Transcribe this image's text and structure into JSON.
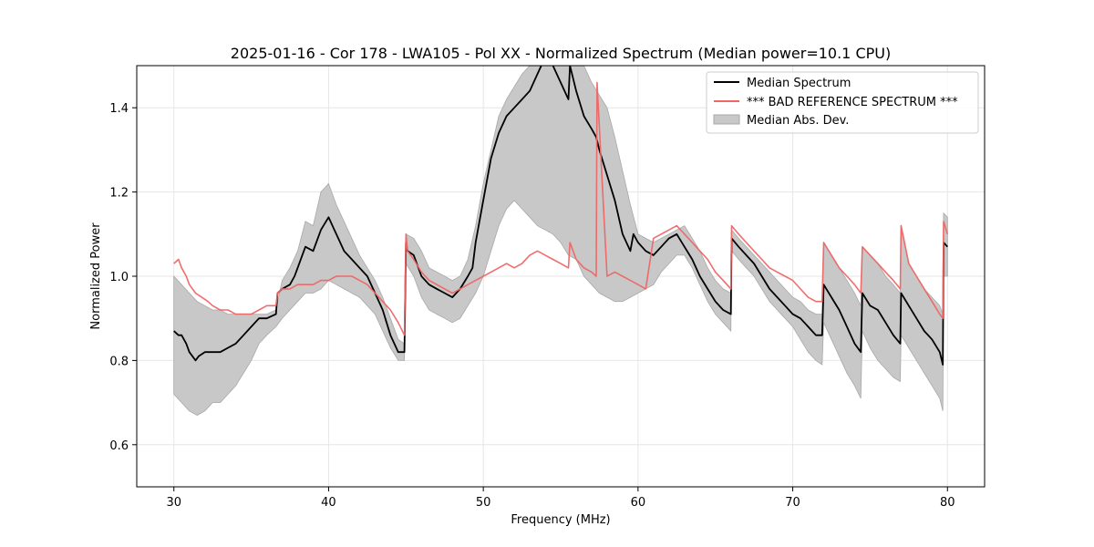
{
  "chart_data": {
    "type": "line",
    "title": "2025-01-16 - Cor 178 - LWA105 - Pol XX - Normalized Spectrum (Median power=10.1 CPU)",
    "xlabel": "Frequency (MHz)",
    "ylabel": "Normalized Power",
    "xlim": [
      27.6,
      82.4
    ],
    "ylim": [
      0.5,
      1.5
    ],
    "xticks": [
      30,
      40,
      50,
      60,
      70,
      80
    ],
    "yticks": [
      0.6,
      0.8,
      1.0,
      1.2,
      1.4
    ],
    "grid": true,
    "legend_position": "top-right",
    "series": [
      {
        "name": "Median Spectrum",
        "color": "#000000",
        "x": [
          30.0,
          30.3,
          30.5,
          30.8,
          31.0,
          31.4,
          31.6,
          32.0,
          32.5,
          33.0,
          33.5,
          34.0,
          34.5,
          35.0,
          35.5,
          36.0,
          36.6,
          36.7,
          37.0,
          37.5,
          37.8,
          38.0,
          38.3,
          38.5,
          39.0,
          39.5,
          40.0,
          40.5,
          41.0,
          41.5,
          42.0,
          42.5,
          43.0,
          43.5,
          44.0,
          44.5,
          44.9,
          45.0,
          45.1,
          45.5,
          46.0,
          46.5,
          47.0,
          47.5,
          48.0,
          48.5,
          49.0,
          49.3,
          49.5,
          50.0,
          50.5,
          51.0,
          51.5,
          52.0,
          52.5,
          53.0,
          53.5,
          54.0,
          54.5,
          55.0,
          55.5,
          55.6,
          56.0,
          56.5,
          57.0,
          57.3,
          57.5,
          58.0,
          58.5,
          59.0,
          59.5,
          59.7,
          60.0,
          60.5,
          61.0,
          61.5,
          62.0,
          62.5,
          63.0,
          63.5,
          64.0,
          64.5,
          65.0,
          65.5,
          66.0,
          66.05,
          66.5,
          67.0,
          67.5,
          68.0,
          68.5,
          69.0,
          69.5,
          70.0,
          70.5,
          71.0,
          71.5,
          71.9,
          72.0,
          72.5,
          73.0,
          73.5,
          74.0,
          74.4,
          74.5,
          75.0,
          75.5,
          76.0,
          76.5,
          76.95,
          77.0,
          77.5,
          78.0,
          78.5,
          79.0,
          79.5,
          79.7,
          79.75,
          80.0
        ],
        "values": [
          0.87,
          0.86,
          0.86,
          0.84,
          0.82,
          0.8,
          0.81,
          0.82,
          0.82,
          0.82,
          0.83,
          0.84,
          0.86,
          0.88,
          0.9,
          0.9,
          0.91,
          0.96,
          0.97,
          0.98,
          1.0,
          1.02,
          1.05,
          1.07,
          1.06,
          1.11,
          1.14,
          1.1,
          1.06,
          1.04,
          1.02,
          1.0,
          0.96,
          0.92,
          0.86,
          0.82,
          0.82,
          1.08,
          1.06,
          1.05,
          1.0,
          0.98,
          0.97,
          0.96,
          0.95,
          0.97,
          1.0,
          1.02,
          1.08,
          1.18,
          1.28,
          1.34,
          1.38,
          1.4,
          1.42,
          1.44,
          1.48,
          1.52,
          1.5,
          1.46,
          1.42,
          1.5,
          1.44,
          1.38,
          1.35,
          1.33,
          1.3,
          1.24,
          1.18,
          1.1,
          1.06,
          1.1,
          1.08,
          1.06,
          1.05,
          1.07,
          1.09,
          1.1,
          1.07,
          1.04,
          1.0,
          0.97,
          0.94,
          0.92,
          0.91,
          1.09,
          1.07,
          1.05,
          1.03,
          1.0,
          0.97,
          0.95,
          0.93,
          0.91,
          0.9,
          0.88,
          0.86,
          0.86,
          0.98,
          0.95,
          0.92,
          0.88,
          0.84,
          0.82,
          0.96,
          0.93,
          0.92,
          0.89,
          0.86,
          0.84,
          0.96,
          0.93,
          0.9,
          0.87,
          0.85,
          0.82,
          0.79,
          1.08,
          1.07
        ]
      },
      {
        "name": "*** BAD REFERENCE SPECTRUM ***",
        "color": "#ee6666",
        "x": [
          30.0,
          30.3,
          30.5,
          30.8,
          31.0,
          31.4,
          31.8,
          32.2,
          32.5,
          33.0,
          33.5,
          34.0,
          34.5,
          35.0,
          35.5,
          36.0,
          36.6,
          36.7,
          37.0,
          37.5,
          38.0,
          38.5,
          39.0,
          39.5,
          40.0,
          40.5,
          41.0,
          41.5,
          42.0,
          42.5,
          43.0,
          43.5,
          44.0,
          44.5,
          44.9,
          45.0,
          45.1,
          45.5,
          46.0,
          46.5,
          47.0,
          47.5,
          48.0,
          48.5,
          49.0,
          49.5,
          50.0,
          50.5,
          51.0,
          51.5,
          52.0,
          52.5,
          53.0,
          53.5,
          54.0,
          54.5,
          55.0,
          55.5,
          55.6,
          56.0,
          56.5,
          57.0,
          57.3,
          57.35,
          58.0,
          58.5,
          59.0,
          59.5,
          60.0,
          60.5,
          61.0,
          61.5,
          62.0,
          62.5,
          63.0,
          63.5,
          64.0,
          64.5,
          65.0,
          65.5,
          66.0,
          66.05,
          66.5,
          67.0,
          67.5,
          68.0,
          68.5,
          69.0,
          69.5,
          70.0,
          70.5,
          71.0,
          71.5,
          71.9,
          72.0,
          72.5,
          73.0,
          73.5,
          74.0,
          74.4,
          74.5,
          75.0,
          75.5,
          76.0,
          76.5,
          76.95,
          77.0,
          77.5,
          78.0,
          78.5,
          79.0,
          79.5,
          79.7,
          79.75,
          80.0
        ],
        "values": [
          1.03,
          1.04,
          1.02,
          1.0,
          0.98,
          0.96,
          0.95,
          0.94,
          0.93,
          0.92,
          0.92,
          0.91,
          0.91,
          0.91,
          0.92,
          0.93,
          0.93,
          0.96,
          0.97,
          0.97,
          0.98,
          0.98,
          0.98,
          0.99,
          0.99,
          1.0,
          1.0,
          1.0,
          0.99,
          0.98,
          0.96,
          0.94,
          0.92,
          0.89,
          0.86,
          1.1,
          1.06,
          1.04,
          1.01,
          0.99,
          0.98,
          0.97,
          0.96,
          0.97,
          0.98,
          0.99,
          1.0,
          1.01,
          1.02,
          1.03,
          1.02,
          1.03,
          1.05,
          1.06,
          1.05,
          1.04,
          1.03,
          1.02,
          1.08,
          1.04,
          1.02,
          1.01,
          1.0,
          1.46,
          1.0,
          1.01,
          1.0,
          0.99,
          0.98,
          0.97,
          1.09,
          1.1,
          1.11,
          1.12,
          1.1,
          1.08,
          1.06,
          1.04,
          1.01,
          0.99,
          0.97,
          1.12,
          1.1,
          1.08,
          1.06,
          1.04,
          1.02,
          1.01,
          1.0,
          0.99,
          0.97,
          0.95,
          0.94,
          0.94,
          1.08,
          1.05,
          1.02,
          1.0,
          0.98,
          0.96,
          1.07,
          1.05,
          1.03,
          1.01,
          0.99,
          0.97,
          1.12,
          1.03,
          1.0,
          0.97,
          0.94,
          0.91,
          0.9,
          1.13,
          1.1
        ]
      }
    ],
    "band": {
      "name": "Median Abs. Dev.",
      "color": "#c8c8c8",
      "x": [
        30.0,
        30.5,
        31.0,
        31.5,
        32.0,
        32.5,
        33.0,
        33.5,
        34.0,
        34.5,
        35.0,
        35.5,
        36.0,
        36.6,
        37.0,
        37.5,
        38.0,
        38.5,
        39.0,
        39.5,
        40.0,
        40.5,
        41.0,
        41.5,
        42.0,
        42.5,
        43.0,
        43.5,
        44.0,
        44.5,
        44.9,
        45.0,
        45.5,
        46.0,
        46.5,
        47.0,
        47.5,
        48.0,
        48.5,
        49.0,
        49.5,
        50.0,
        50.5,
        51.0,
        51.5,
        52.0,
        52.5,
        53.0,
        53.5,
        54.0,
        54.5,
        55.0,
        55.5,
        56.0,
        56.5,
        57.0,
        57.5,
        58.0,
        58.5,
        59.0,
        59.5,
        60.0,
        60.5,
        61.0,
        61.5,
        62.0,
        62.5,
        63.0,
        63.5,
        64.0,
        64.5,
        65.0,
        65.5,
        66.0,
        66.05,
        66.5,
        67.0,
        67.5,
        68.0,
        68.5,
        69.0,
        69.5,
        70.0,
        70.5,
        71.0,
        71.5,
        71.9,
        72.0,
        72.5,
        73.0,
        73.5,
        74.0,
        74.4,
        74.5,
        75.0,
        75.5,
        76.0,
        76.5,
        76.95,
        77.0,
        77.5,
        78.0,
        78.5,
        79.0,
        79.5,
        79.7,
        79.75,
        80.0
      ],
      "upper": [
        1.0,
        0.98,
        0.96,
        0.94,
        0.93,
        0.92,
        0.92,
        0.91,
        0.91,
        0.91,
        0.91,
        0.91,
        0.91,
        0.92,
        0.99,
        1.02,
        1.06,
        1.13,
        1.12,
        1.2,
        1.22,
        1.17,
        1.13,
        1.09,
        1.05,
        1.02,
        0.99,
        0.95,
        0.9,
        0.85,
        0.84,
        1.1,
        1.09,
        1.06,
        1.02,
        1.01,
        1.0,
        0.99,
        1.0,
        1.04,
        1.12,
        1.22,
        1.3,
        1.38,
        1.42,
        1.45,
        1.48,
        1.5,
        1.52,
        1.55,
        1.55,
        1.52,
        1.5,
        1.54,
        1.5,
        1.46,
        1.43,
        1.4,
        1.33,
        1.25,
        1.17,
        1.1,
        1.09,
        1.08,
        1.09,
        1.1,
        1.11,
        1.12,
        1.09,
        1.06,
        1.02,
        0.99,
        0.97,
        0.96,
        1.11,
        1.09,
        1.07,
        1.05,
        1.03,
        1.01,
        0.99,
        0.97,
        0.95,
        0.94,
        0.92,
        0.91,
        0.91,
        1.08,
        1.05,
        1.02,
        0.99,
        0.96,
        0.93,
        1.07,
        1.05,
        1.03,
        1.0,
        0.98,
        0.96,
        1.12,
        1.03,
        1.0,
        0.97,
        0.95,
        0.93,
        0.91,
        1.15,
        1.14
      ],
      "lower": [
        0.72,
        0.7,
        0.68,
        0.67,
        0.68,
        0.7,
        0.7,
        0.72,
        0.74,
        0.77,
        0.8,
        0.84,
        0.86,
        0.88,
        0.9,
        0.92,
        0.94,
        0.96,
        0.96,
        0.97,
        0.99,
        0.98,
        0.97,
        0.96,
        0.95,
        0.93,
        0.91,
        0.87,
        0.83,
        0.8,
        0.8,
        1.03,
        1.0,
        0.95,
        0.92,
        0.91,
        0.9,
        0.89,
        0.9,
        0.93,
        0.96,
        1.0,
        1.06,
        1.12,
        1.16,
        1.18,
        1.16,
        1.14,
        1.12,
        1.11,
        1.1,
        1.08,
        1.05,
        1.04,
        1.0,
        0.98,
        0.96,
        0.95,
        0.94,
        0.94,
        0.95,
        0.96,
        0.97,
        0.98,
        1.01,
        1.03,
        1.05,
        1.05,
        1.02,
        0.98,
        0.94,
        0.91,
        0.89,
        0.87,
        1.06,
        1.04,
        1.02,
        1.0,
        0.97,
        0.94,
        0.92,
        0.9,
        0.88,
        0.85,
        0.82,
        0.8,
        0.79,
        0.89,
        0.85,
        0.81,
        0.77,
        0.74,
        0.71,
        0.87,
        0.83,
        0.8,
        0.78,
        0.76,
        0.75,
        0.86,
        0.83,
        0.8,
        0.77,
        0.74,
        0.71,
        0.68,
        1.0,
        1.0
      ]
    },
    "legend": [
      {
        "label": "Median Spectrum",
        "kind": "line",
        "color": "#000000"
      },
      {
        "label": "*** BAD REFERENCE SPECTRUM ***",
        "kind": "line",
        "color": "#ee6666"
      },
      {
        "label": "Median Abs. Dev.",
        "kind": "patch",
        "color": "#c8c8c8"
      }
    ]
  }
}
